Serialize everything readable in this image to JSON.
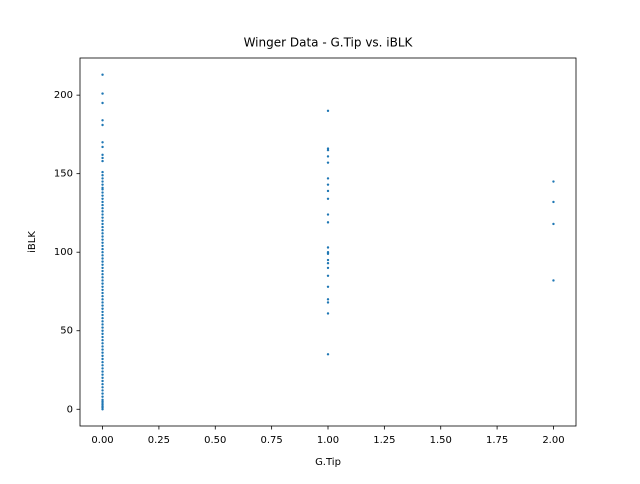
{
  "chart_data": {
    "type": "scatter",
    "title": "Winger Data - G.Tip vs. iBLK",
    "x_label": "G.Tip",
    "y_label": "iBLK",
    "color": "#1f77b4",
    "x": [
      0,
      0,
      0,
      0,
      0,
      0,
      0,
      0,
      0,
      0,
      0,
      0,
      0,
      0,
      0,
      0,
      0,
      0,
      0,
      0,
      0,
      0,
      0,
      0,
      0,
      0,
      0,
      0,
      0,
      0,
      0,
      0,
      0,
      0,
      0,
      0,
      0,
      0,
      0,
      0,
      0,
      0,
      0,
      0,
      0,
      0,
      0,
      0,
      0,
      0,
      0,
      0,
      0,
      0,
      0,
      0,
      0,
      0,
      0,
      0,
      0,
      0,
      0,
      0,
      0,
      0,
      0,
      0,
      0,
      0,
      0,
      0,
      0,
      0,
      0,
      0,
      0,
      0,
      0,
      0,
      0,
      0,
      0,
      0,
      0,
      0,
      0,
      0,
      0,
      0,
      1,
      1,
      1,
      1,
      1,
      1,
      1,
      1,
      1,
      1,
      1,
      1,
      1,
      1,
      1,
      1,
      1,
      1,
      1,
      1,
      1,
      1,
      1,
      2,
      2,
      2,
      2
    ],
    "values": [
      213,
      201,
      195,
      184,
      181,
      170,
      167,
      162,
      160,
      158,
      151,
      149,
      147,
      145,
      143,
      141,
      140,
      138,
      136,
      134,
      132,
      130,
      128,
      126,
      124,
      122,
      120,
      118,
      116,
      114,
      112,
      110,
      108,
      106,
      104,
      102,
      100,
      98,
      96,
      94,
      92,
      90,
      88,
      86,
      84,
      82,
      80,
      78,
      76,
      74,
      72,
      70,
      68,
      66,
      64,
      62,
      60,
      58,
      56,
      54,
      52,
      50,
      48,
      46,
      44,
      42,
      40,
      38,
      36,
      34,
      32,
      30,
      28,
      26,
      24,
      22,
      20,
      18,
      16,
      14,
      12,
      10,
      8,
      6,
      5,
      4,
      3,
      2,
      1,
      0,
      190,
      166,
      165,
      161,
      157,
      147,
      143,
      139,
      134,
      124,
      119,
      103,
      100,
      99,
      95,
      93,
      90,
      85,
      78,
      70,
      68,
      61,
      35,
      145,
      132,
      118,
      82
    ],
    "xlim": [
      -0.1,
      2.1
    ],
    "xticks": [
      {
        "value": 0,
        "label": "0.00"
      },
      {
        "value": 0.25,
        "label": "0.25"
      },
      {
        "value": 0.5,
        "label": "0.50"
      },
      {
        "value": 0.75,
        "label": "0.75"
      },
      {
        "value": 1,
        "label": "1.00"
      },
      {
        "value": 1.25,
        "label": "1.25"
      },
      {
        "value": 1.5,
        "label": "1.50"
      },
      {
        "value": 1.75,
        "label": "1.75"
      },
      {
        "value": 2,
        "label": "2.00"
      }
    ],
    "ylim": [
      -10.65,
      223.65
    ],
    "yticks": [
      0,
      50,
      100,
      150,
      200
    ]
  }
}
